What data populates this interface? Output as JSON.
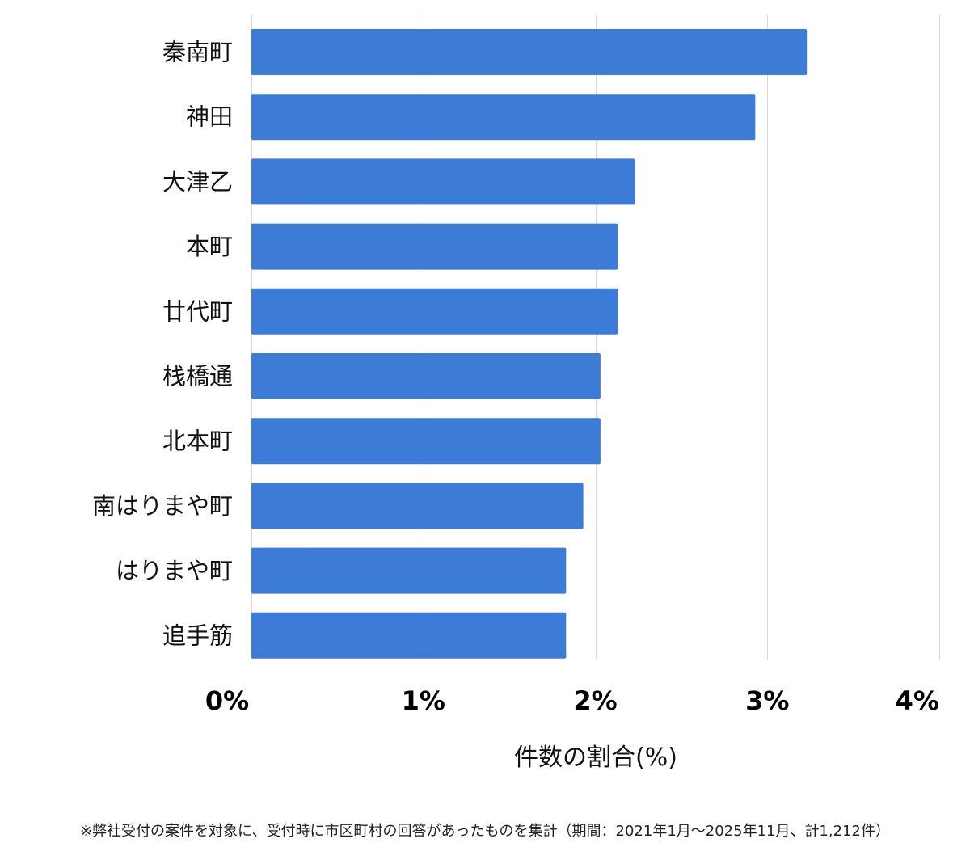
{
  "chart_data": {
    "type": "bar",
    "orientation": "horizontal",
    "categories": [
      "秦南町",
      "神田",
      "大津乙",
      "本町",
      "廿代町",
      "栈橋通",
      "北本町",
      "南はりまや町",
      "はりまや町",
      "追手筋"
    ],
    "values": [
      3.23,
      2.93,
      2.23,
      2.13,
      2.13,
      2.03,
      2.03,
      1.93,
      1.83,
      1.83
    ],
    "xlim": [
      0,
      4
    ],
    "xticks": [
      0,
      1,
      2,
      3,
      4
    ],
    "xtick_labels": [
      "0%",
      "1%",
      "2%",
      "3%",
      "4%"
    ],
    "xlabel": "件数の割合(%)",
    "grid": "vertical",
    "bar_color": "#3c7bd6"
  },
  "footnote": "※弊社受付の案件を対象に、受付時に市区町村の回答があったものを集計（期間：2021年1月～2025年11月、計1,212件）"
}
